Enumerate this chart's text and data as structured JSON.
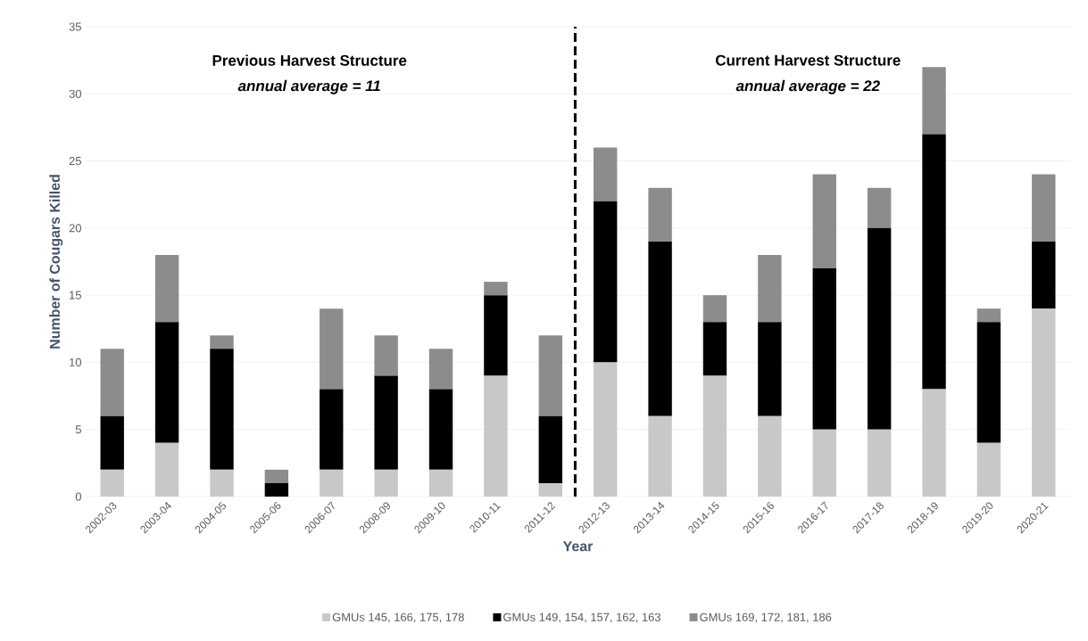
{
  "chart_data": {
    "type": "bar",
    "stacked": true,
    "xlabel": "Year",
    "ylabel": "Number of Cougars Killed",
    "categories": [
      "2002-03",
      "2003-04",
      "2004-05",
      "2005-06",
      "2006-07",
      "2008-09",
      "2009-10",
      "2010-11",
      "2011-12",
      "2012-13",
      "2013-14",
      "2014-15",
      "2015-16",
      "2016-17",
      "2017-18",
      "2018-19",
      "2019-20",
      "2020-21"
    ],
    "series": [
      {
        "name": "GMUs 145, 166, 175, 178",
        "color": "#c8c8c8",
        "values": [
          2,
          4,
          2,
          0,
          2,
          2,
          2,
          9,
          1,
          10,
          6,
          9,
          6,
          5,
          5,
          8,
          4,
          14
        ]
      },
      {
        "name": "GMUs 149, 154, 157, 162, 163",
        "color": "#000000",
        "values": [
          4,
          9,
          9,
          1,
          6,
          7,
          6,
          6,
          5,
          12,
          13,
          4,
          7,
          12,
          15,
          19,
          9,
          5
        ]
      },
      {
        "name": "GMUs 169, 172, 181, 186",
        "color": "#8c8c8c",
        "values": [
          5,
          5,
          1,
          1,
          6,
          3,
          3,
          1,
          6,
          4,
          4,
          2,
          5,
          7,
          3,
          5,
          1,
          5
        ]
      }
    ],
    "ref_lines": [
      {
        "axis": "x",
        "value": "2011-12",
        "color": "#000000",
        "line_style": "dashed"
      }
    ],
    "ylim": [
      0,
      35
    ],
    "yticks": [
      0,
      5,
      10,
      15,
      20,
      25,
      30,
      35
    ],
    "grid": "y",
    "legend": "bottom",
    "annotations": [
      "Previous Harvest Structure",
      "annual average = 11",
      "Current Harvest Structure",
      "annual average = 22"
    ]
  }
}
